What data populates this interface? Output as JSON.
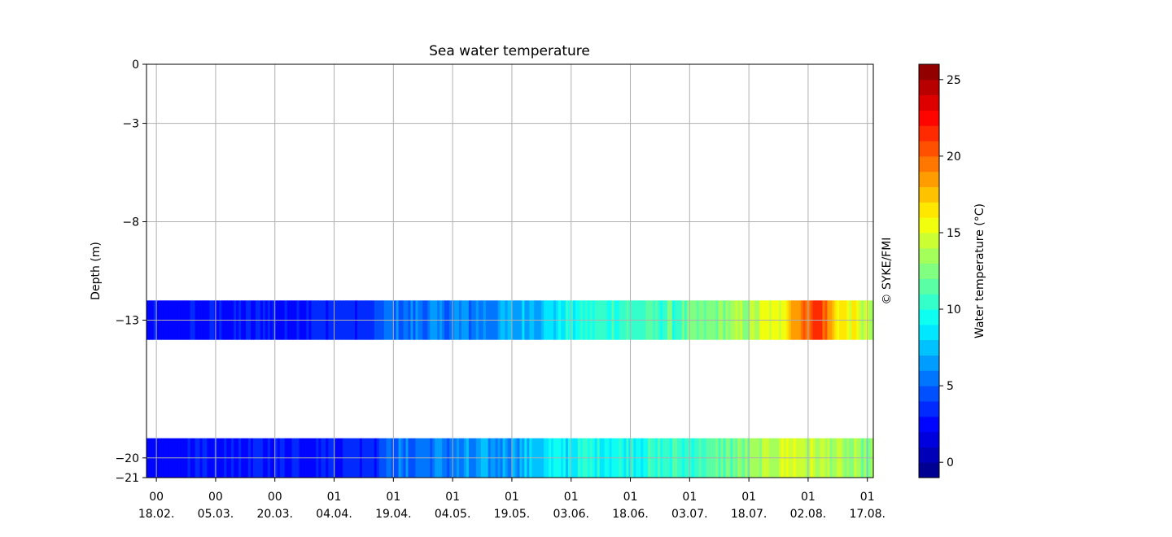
{
  "chart_data": {
    "type": "heatmap",
    "title": "Sea water temperature",
    "ylabel": "Depth (m)",
    "xlabel": "",
    "copyright": "© SYKE/FMI",
    "ylim": [
      -21,
      0
    ],
    "y_ticks": [
      0,
      -3,
      -8,
      -13,
      -20,
      -21
    ],
    "x_ticks": [
      {
        "top": "00",
        "bottom": "18.02."
      },
      {
        "top": "00",
        "bottom": "05.03."
      },
      {
        "top": "00",
        "bottom": "20.03."
      },
      {
        "top": "01",
        "bottom": "04.04."
      },
      {
        "top": "01",
        "bottom": "19.04."
      },
      {
        "top": "01",
        "bottom": "04.05."
      },
      {
        "top": "01",
        "bottom": "19.05."
      },
      {
        "top": "01",
        "bottom": "03.06."
      },
      {
        "top": "01",
        "bottom": "18.06."
      },
      {
        "top": "01",
        "bottom": "03.07."
      },
      {
        "top": "01",
        "bottom": "18.07."
      },
      {
        "top": "01",
        "bottom": "02.08."
      },
      {
        "top": "01",
        "bottom": "17.08."
      }
    ],
    "x_range_days": [
      -2.5,
      181.5
    ],
    "grid": true,
    "bands": [
      {
        "depth_top": -12,
        "depth_bottom": -14,
        "depth": -13,
        "temperature_profile": [
          {
            "day": -2.5,
            "t": 2.5
          },
          {
            "day": 15,
            "t": 2.8
          },
          {
            "day": 30,
            "t": 3.0
          },
          {
            "day": 55,
            "t": 3.5
          },
          {
            "day": 58,
            "t": 5.0
          },
          {
            "day": 80,
            "t": 5.8
          },
          {
            "day": 94,
            "t": 7.2
          },
          {
            "day": 105,
            "t": 9.5
          },
          {
            "day": 115,
            "t": 10.5
          },
          {
            "day": 130,
            "t": 11.0
          },
          {
            "day": 140,
            "t": 12.2
          },
          {
            "day": 150,
            "t": 13.5
          },
          {
            "day": 158,
            "t": 15.5
          },
          {
            "day": 162,
            "t": 19.0
          },
          {
            "day": 168,
            "t": 21.5
          },
          {
            "day": 172,
            "t": 17.0
          },
          {
            "day": 178,
            "t": 15.0
          },
          {
            "day": 181.5,
            "t": 13.5
          }
        ]
      },
      {
        "depth_top": -19,
        "depth_bottom": -21,
        "depth": -20,
        "temperature_profile": [
          {
            "day": -2.5,
            "t": 2.5
          },
          {
            "day": 15,
            "t": 2.8
          },
          {
            "day": 30,
            "t": 3.0
          },
          {
            "day": 56,
            "t": 3.4
          },
          {
            "day": 58,
            "t": 5.0
          },
          {
            "day": 75,
            "t": 5.6
          },
          {
            "day": 90,
            "t": 6.8
          },
          {
            "day": 100,
            "t": 8.5
          },
          {
            "day": 110,
            "t": 9.5
          },
          {
            "day": 125,
            "t": 10.0
          },
          {
            "day": 140,
            "t": 11.0
          },
          {
            "day": 150,
            "t": 12.5
          },
          {
            "day": 160,
            "t": 15.0
          },
          {
            "day": 168,
            "t": 14.0
          },
          {
            "day": 175,
            "t": 13.0
          },
          {
            "day": 181.5,
            "t": 12.5
          }
        ]
      }
    ],
    "colorbar": {
      "label": "Water temperature (°C)",
      "range": [
        -1,
        26
      ],
      "ticks": [
        0,
        5,
        10,
        15,
        20,
        25
      ],
      "levels": 27
    }
  }
}
